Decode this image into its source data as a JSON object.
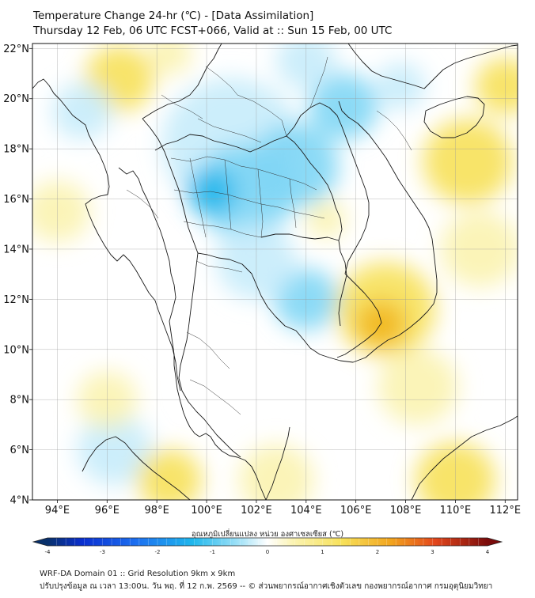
{
  "title_line1": "Temperature Change 24-hr (℃) - [Data Assimilation]",
  "title_line2": "Thursday 12 Feb, 06 UTC FCST+066, Valid at :: Sun 15 Feb, 00 UTC",
  "map": {
    "lon_range": [
      93,
      112.5
    ],
    "lat_range": [
      4,
      22.2
    ],
    "lat_ticks": [
      "22°N",
      "20°N",
      "18°N",
      "16°N",
      "14°N",
      "12°N",
      "10°N",
      "8°N",
      "6°N",
      "4°N"
    ],
    "lon_ticks": [
      "94°E",
      "96°E",
      "98°E",
      "100°E",
      "102°E",
      "104°E",
      "106°E",
      "108°E",
      "110°E",
      "112°E"
    ],
    "colors": {
      "cold_strong": "#1fb7ec",
      "cold": "#7fd6f5",
      "cold_light": "#c6ecfb",
      "warm_light": "#fbf3b0",
      "warm": "#f7e15a",
      "warm_strong": "#f2b61e",
      "border": "#1a1a1a"
    }
  },
  "colorbar": {
    "label": "อุณหภูมิเปลี่ยนแปลง หน่วย องศาเซลเซียส (℃)",
    "min": -4,
    "max": 4,
    "ticks": [
      "-4",
      "-3",
      "-2",
      "-1",
      "0",
      "1",
      "2",
      "3",
      "4"
    ]
  },
  "footer_line1": "WRF-DA Domain 01 :: Grid Resolution 9km x 9km",
  "footer_line2": "ปรับปรุงข้อมูล ณ เวลา 13:00น. วัน พฤ. ที่ 12 ก.พ. 2569 -- © ส่วนพยากรณ์อากาศเชิงตัวเลข กองพยากรณ์อากาศ กรมอุตุนิยมวิทยา"
}
